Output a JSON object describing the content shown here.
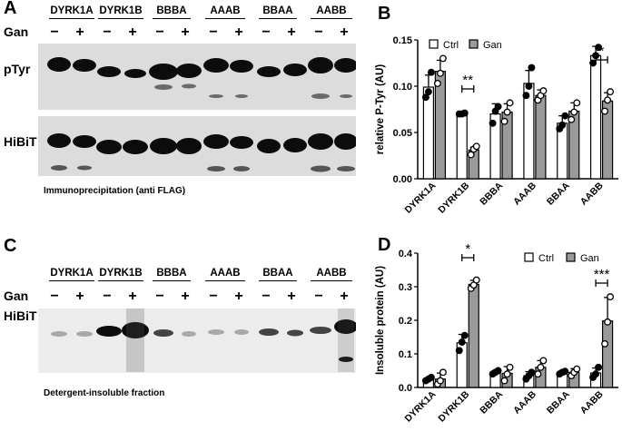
{
  "panels": {
    "A": "A",
    "B": "B",
    "C": "C",
    "D": "D"
  },
  "blots": {
    "constructs": [
      "DYRK1A",
      "DYRK1B",
      "BBBA",
      "AAAB",
      "BBAA",
      "AABB"
    ],
    "gan_label": "Gan",
    "signs": [
      "−",
      "+"
    ],
    "A": {
      "row1": "pTyr",
      "row2": "HiBiT",
      "caption": "Immunoprecipitation (anti FLAG)"
    },
    "C": {
      "row1": "HiBiT",
      "caption": "Detergent-insoluble fraction"
    }
  },
  "colors": {
    "ctrl": "#ffffff",
    "gan": "#9a9a9a",
    "stroke": "#000000"
  },
  "chart_data": [
    {
      "panel": "B",
      "type": "bar",
      "ylabel": "relative P-Tyr (AU)",
      "ylim": [
        0,
        0.15
      ],
      "yticks": [
        "0.00",
        "0.05",
        "0.10",
        "0.15"
      ],
      "categories": [
        "DYRK1A",
        "DYRK1B",
        "BBBA",
        "AAAB",
        "BBAA",
        "AABB"
      ],
      "legend_position": "top-left",
      "series": [
        {
          "name": "Ctrl",
          "values": [
            0.099,
            0.07,
            0.07,
            0.103,
            0.06,
            0.133
          ],
          "errors": [
            0.013,
            0.001,
            0.011,
            0.014,
            0.008,
            0.01
          ],
          "points": [
            [
              0.088,
              0.094,
              0.115
            ],
            [
              0.07,
              0.07,
              0.071
            ],
            [
              0.06,
              0.073,
              0.078
            ],
            [
              0.09,
              0.1,
              0.12
            ],
            [
              0.054,
              0.058,
              0.068
            ],
            [
              0.125,
              0.133,
              0.142
            ]
          ]
        },
        {
          "name": "Gan",
          "values": [
            0.116,
            0.031,
            0.072,
            0.09,
            0.073,
            0.084
          ],
          "errors": [
            0.012,
            0.003,
            0.009,
            0.006,
            0.009,
            0.009
          ],
          "points": [
            [
              0.103,
              0.114,
              0.13
            ],
            [
              0.026,
              0.032,
              0.035
            ],
            [
              0.062,
              0.072,
              0.082
            ],
            [
              0.085,
              0.09,
              0.095
            ],
            [
              0.064,
              0.072,
              0.082
            ],
            [
              0.073,
              0.085,
              0.094
            ]
          ]
        }
      ],
      "significance": [
        {
          "category": "DYRK1B",
          "label": "**"
        },
        {
          "category": "AABB",
          "label": "*"
        }
      ]
    },
    {
      "panel": "D",
      "type": "bar",
      "ylabel": "Insoluble protein (AU)",
      "ylim": [
        0,
        0.4
      ],
      "yticks": [
        "0.0",
        "0.1",
        "0.2",
        "0.3",
        "0.4"
      ],
      "categories": [
        "DYRK1A",
        "DYRK1B",
        "BBBA",
        "AAAB",
        "BBAA",
        "AABB"
      ],
      "legend_position": "top-right",
      "series": [
        {
          "name": "Ctrl",
          "values": [
            0.025,
            0.133,
            0.045,
            0.035,
            0.045,
            0.043
          ],
          "errors": [
            0.004,
            0.025,
            0.005,
            0.012,
            0.004,
            0.015
          ],
          "points": [
            [
              0.02,
              0.025,
              0.03
            ],
            [
              0.11,
              0.135,
              0.155
            ],
            [
              0.04,
              0.045,
              0.05
            ],
            [
              0.025,
              0.035,
              0.045
            ],
            [
              0.04,
              0.045,
              0.048
            ],
            [
              0.03,
              0.04,
              0.06
            ]
          ]
        },
        {
          "name": "Gan",
          "values": [
            0.025,
            0.307,
            0.042,
            0.06,
            0.045,
            0.198
          ],
          "errors": [
            0.018,
            0.012,
            0.02,
            0.02,
            0.011,
            0.07
          ],
          "points": [
            [
              0.01,
              0.02,
              0.045
            ],
            [
              0.295,
              0.305,
              0.32
            ],
            [
              0.02,
              0.04,
              0.06
            ],
            [
              0.04,
              0.06,
              0.08
            ],
            [
              0.035,
              0.045,
              0.055
            ],
            [
              0.13,
              0.195,
              0.27
            ]
          ]
        }
      ],
      "significance": [
        {
          "category": "DYRK1B",
          "label": "*"
        },
        {
          "category": "AABB",
          "label": "***"
        }
      ]
    }
  ]
}
